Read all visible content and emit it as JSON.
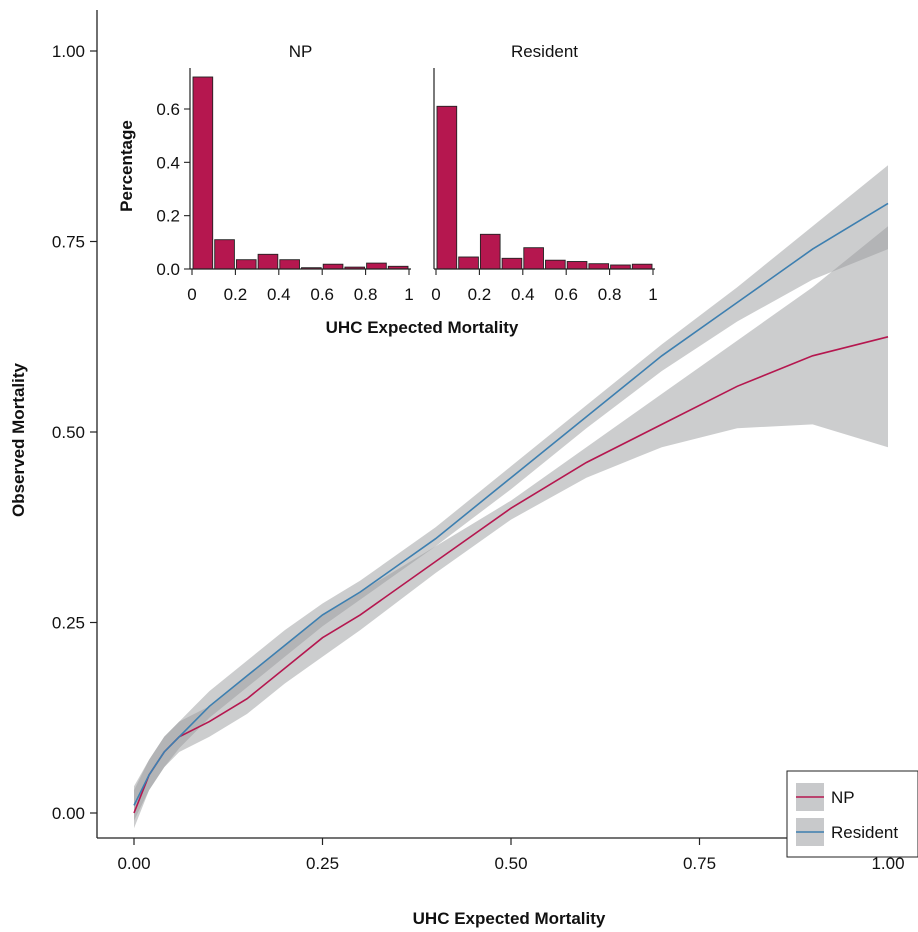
{
  "chart_data": [
    {
      "type": "line",
      "xlabel": "UHC Expected Mortality",
      "ylabel": "Observed Mortality",
      "xlim": [
        0,
        1
      ],
      "ylim": [
        -0.07,
        1.05
      ],
      "xticks": [
        "0.00",
        "0.25",
        "0.50",
        "0.75",
        "1.00"
      ],
      "yticks": [
        "0.00",
        "0.25",
        "0.50",
        "0.75",
        "1.00"
      ],
      "grid": false,
      "legend": "bottom-right",
      "colors": {
        "NP": "#b5174f",
        "Resident": "#3d7fb0",
        "band": "#c8c9cb"
      },
      "series": [
        {
          "name": "NP",
          "x": [
            0,
            0.02,
            0.04,
            0.06,
            0.08,
            0.1,
            0.15,
            0.2,
            0.25,
            0.3,
            0.4,
            0.5,
            0.6,
            0.7,
            0.8,
            0.9,
            1.0
          ],
          "y": [
            0.0,
            0.05,
            0.08,
            0.1,
            0.11,
            0.12,
            0.15,
            0.19,
            0.23,
            0.26,
            0.33,
            0.4,
            0.46,
            0.51,
            0.56,
            0.6,
            0.625
          ],
          "lower": [
            -0.02,
            0.03,
            0.06,
            0.08,
            0.09,
            0.1,
            0.13,
            0.17,
            0.205,
            0.24,
            0.315,
            0.385,
            0.44,
            0.48,
            0.505,
            0.51,
            0.48
          ],
          "upper": [
            0.03,
            0.07,
            0.1,
            0.12,
            0.13,
            0.14,
            0.18,
            0.22,
            0.26,
            0.29,
            0.35,
            0.41,
            0.48,
            0.55,
            0.62,
            0.69,
            0.77
          ]
        },
        {
          "name": "Resident",
          "x": [
            0,
            0.02,
            0.04,
            0.06,
            0.08,
            0.1,
            0.15,
            0.2,
            0.25,
            0.3,
            0.4,
            0.5,
            0.6,
            0.7,
            0.8,
            0.9,
            1.0
          ],
          "y": [
            0.01,
            0.05,
            0.08,
            0.1,
            0.12,
            0.14,
            0.18,
            0.22,
            0.26,
            0.29,
            0.36,
            0.44,
            0.52,
            0.6,
            0.67,
            0.74,
            0.8
          ],
          "lower": [
            -0.01,
            0.03,
            0.06,
            0.085,
            0.105,
            0.125,
            0.165,
            0.205,
            0.245,
            0.28,
            0.35,
            0.425,
            0.505,
            0.58,
            0.645,
            0.7,
            0.74
          ],
          "upper": [
            0.035,
            0.07,
            0.1,
            0.12,
            0.14,
            0.16,
            0.2,
            0.24,
            0.275,
            0.305,
            0.375,
            0.455,
            0.535,
            0.615,
            0.69,
            0.77,
            0.85
          ]
        }
      ]
    },
    {
      "type": "bar",
      "title": "NP",
      "xlabel": "UHC Expected Mortality",
      "ylabel": "Percentage",
      "xlim": [
        0,
        1
      ],
      "ylim": [
        0,
        0.75
      ],
      "xticks": [
        "0",
        "0.2",
        "0.4",
        "0.6",
        "0.8",
        "1"
      ],
      "yticks": [
        "0.0",
        "0.2",
        "0.4",
        "0.6"
      ],
      "bin_width": 0.1,
      "categories": [
        0.05,
        0.15,
        0.25,
        0.35,
        0.45,
        0.55,
        0.65,
        0.75,
        0.85,
        0.95
      ],
      "values": [
        0.72,
        0.11,
        0.035,
        0.055,
        0.035,
        0.005,
        0.018,
        0.007,
        0.022,
        0.01
      ],
      "color": "#b5174f"
    },
    {
      "type": "bar",
      "title": "Resident",
      "xlabel": "UHC Expected Mortality",
      "ylabel": "",
      "xlim": [
        0,
        1
      ],
      "ylim": [
        0,
        0.75
      ],
      "xticks": [
        "0",
        "0.2",
        "0.4",
        "0.6",
        "0.8",
        "1"
      ],
      "yticks": [],
      "bin_width": 0.1,
      "categories": [
        0.05,
        0.15,
        0.25,
        0.35,
        0.45,
        0.55,
        0.65,
        0.75,
        0.85,
        0.95
      ],
      "values": [
        0.61,
        0.045,
        0.13,
        0.04,
        0.08,
        0.033,
        0.028,
        0.02,
        0.015,
        0.018
      ],
      "color": "#b5174f"
    }
  ]
}
